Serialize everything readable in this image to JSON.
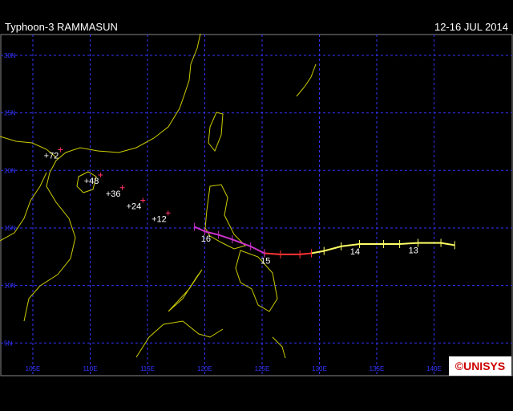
{
  "header": {
    "title": "Typhoon-3 RAMMASUN",
    "dates": "12-16 JUL 2014"
  },
  "map": {
    "lat_lines": [
      {
        "value": 30,
        "label": "30N"
      },
      {
        "value": 25,
        "label": "25N"
      },
      {
        "value": 20,
        "label": "20N"
      },
      {
        "value": 15,
        "label": "15N"
      },
      {
        "value": 10,
        "label": "10N"
      },
      {
        "value": 5,
        "label": "5N"
      }
    ],
    "lon_lines": [
      {
        "value": 105,
        "label": "105E"
      },
      {
        "value": 110,
        "label": "110E"
      },
      {
        "value": 115,
        "label": "115E"
      },
      {
        "value": 120,
        "label": "120E"
      },
      {
        "value": 125,
        "label": "125E"
      },
      {
        "value": 130,
        "label": "130E"
      },
      {
        "value": 135,
        "label": "135E"
      },
      {
        "value": 140,
        "label": "140E"
      }
    ],
    "track": [
      {
        "color": "#ffff66",
        "lon": [
          141.8,
          140.6,
          138.6,
          137.0,
          135.6,
          133.5,
          131.9,
          130.4,
          129.3
        ],
        "lat": [
          13.5,
          13.7,
          13.7,
          13.6,
          13.6,
          13.6,
          13.4,
          13.0,
          12.8
        ]
      },
      {
        "color": "#ff3333",
        "lon": [
          129.3,
          128.3,
          126.6,
          125.2
        ],
        "lat": [
          12.8,
          12.7,
          12.7,
          12.8
        ]
      },
      {
        "color": "#cc33cc",
        "lon": [
          125.2,
          124.0,
          122.4,
          121.2,
          120.0,
          119.1
        ],
        "lat": [
          12.8,
          13.4,
          14.0,
          14.4,
          14.7,
          15.1
        ]
      }
    ],
    "day_labels": [
      {
        "label": "13",
        "lon": 138.2,
        "lat": 13.7
      },
      {
        "label": "14",
        "lon": 133.1,
        "lat": 13.6
      },
      {
        "label": "15",
        "lon": 125.3,
        "lat": 12.8
      },
      {
        "label": "16",
        "lon": 120.1,
        "lat": 14.7
      }
    ],
    "forecast": [
      {
        "label": "+12",
        "lon": 116.8,
        "lat": 16.3
      },
      {
        "label": "+24",
        "lon": 114.6,
        "lat": 17.4
      },
      {
        "label": "+36",
        "lon": 112.8,
        "lat": 18.5
      },
      {
        "label": "+48",
        "lon": 110.9,
        "lat": 19.6
      },
      {
        "label": "+72",
        "lon": 107.4,
        "lat": 21.8
      }
    ]
  },
  "logo": "©UNISYS"
}
